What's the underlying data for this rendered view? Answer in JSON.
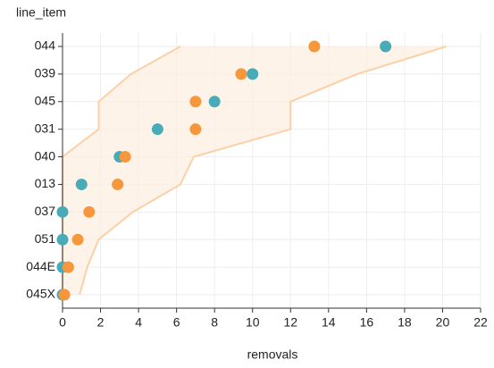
{
  "chart_data": {
    "type": "dot",
    "y_axis_title": "line_item",
    "x_axis_title": "removals",
    "categories": [
      "044",
      "039",
      "045",
      "031",
      "040",
      "013",
      "037",
      "051",
      "044E",
      "045X"
    ],
    "series": [
      {
        "color": "#4aabb8",
        "values": [
          17,
          10,
          8,
          5,
          3,
          1,
          0,
          0,
          0,
          0
        ]
      },
      {
        "color": "#f5973a",
        "values": [
          13.25,
          9.4,
          7,
          7,
          3.3,
          2.9,
          1.4,
          0.8,
          0.3,
          0.1
        ]
      }
    ],
    "band": {
      "fill": "#fdeee0",
      "stroke": "#fbd0a6",
      "lower": [
        6.2,
        3.6,
        1.9,
        1.9,
        0,
        0,
        0,
        0,
        0,
        0
      ],
      "upper": [
        20.2,
        15.5,
        12,
        12,
        6.9,
        6.2,
        3.7,
        1.9,
        1.3,
        0.9
      ]
    },
    "xlim": [
      0,
      22
    ],
    "xticks": [
      0,
      2,
      4,
      6,
      8,
      10,
      12,
      14,
      16,
      18,
      20,
      22
    ],
    "grid": true
  }
}
